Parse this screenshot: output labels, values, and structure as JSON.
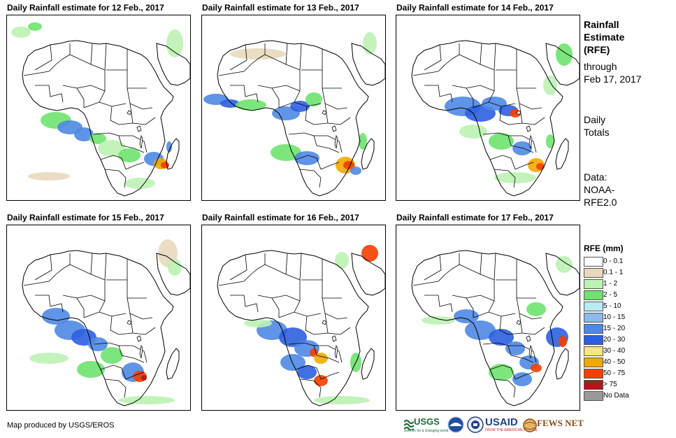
{
  "panels": [
    {
      "title": "Daily Rainfall estimate for 12 Feb., 2017"
    },
    {
      "title": "Daily Rainfall estimate for 13 Feb., 2017"
    },
    {
      "title": "Daily Rainfall estimate for 14 Feb., 2017"
    },
    {
      "title": "Daily Rainfall estimate for 15 Feb., 2017"
    },
    {
      "title": "Daily Rainfall estimate for 16 Feb., 2017"
    },
    {
      "title": "Daily Rainfall estimate for 17 Feb., 2017"
    }
  ],
  "side": {
    "line1": "Rainfall",
    "line2": "Estimate",
    "line3": "(RFE)",
    "line4": "through",
    "line5": "Feb 17, 2017",
    "line6": "Daily",
    "line7": "Totals",
    "line8": "Data:",
    "line9": "NOAA-",
    "line10": "RFE2.0"
  },
  "legend": {
    "title": "RFE (mm)",
    "items": [
      {
        "label": "0 - 0.1",
        "color": "#ffffff"
      },
      {
        "label": "0.1 - 1",
        "color": "#e8d9bd"
      },
      {
        "label": "1 - 2",
        "color": "#bcf2b4"
      },
      {
        "label": "2 - 5",
        "color": "#6ee36e"
      },
      {
        "label": "5 - 10",
        "color": "#b7ecf4"
      },
      {
        "label": "10 - 15",
        "color": "#8db9ec"
      },
      {
        "label": "15 - 20",
        "color": "#4f88e4"
      },
      {
        "label": "20 - 30",
        "color": "#2d5fe0"
      },
      {
        "label": "30 - 40",
        "color": "#f8e38d"
      },
      {
        "label": "40 - 50",
        "color": "#f3a800"
      },
      {
        "label": "50 - 75",
        "color": "#f43f00"
      },
      {
        "label": "> 75",
        "color": "#a61c1c"
      },
      {
        "label": "No Data",
        "color": "#999999"
      }
    ]
  },
  "footer": {
    "text": "Map produced by USGS/EROS"
  },
  "logos": {
    "usgs": "USGS",
    "usgs_tag": "science for a changing world",
    "usaid": "USAID",
    "usaid_tag": "FROM THE AMERICAN PEOPLE",
    "fewsnet": "FEWS NET"
  }
}
